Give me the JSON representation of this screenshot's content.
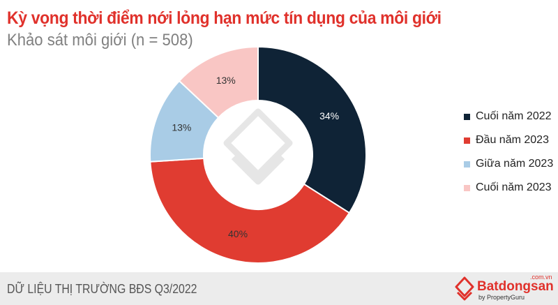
{
  "header": {
    "title": "Kỳ vọng thời điểm nới lỏng hạn mức tín dụng của môi giới",
    "subtitle": "Khảo sát môi giới (n = 508)"
  },
  "chart_data": {
    "type": "pie",
    "donut": true,
    "categories": [
      "Cuối năm 2022",
      "Đầu năm 2023",
      "Giữa năm 2023",
      "Cuối năm 2023"
    ],
    "values": [
      34,
      40,
      13,
      13
    ],
    "labels": [
      "34%",
      "40%",
      "13%",
      "13%"
    ],
    "colors": [
      "#0f2336",
      "#e03c31",
      "#a9cce6",
      "#f9c6c4"
    ],
    "legend": "right"
  },
  "footer": {
    "text": "DỮ LIỆU THỊ TRƯỜNG BĐS Q3/2022",
    "logo_brand": "Batdongsan",
    "logo_domain": ".com.vn",
    "logo_by": "by PropertyGuru"
  }
}
